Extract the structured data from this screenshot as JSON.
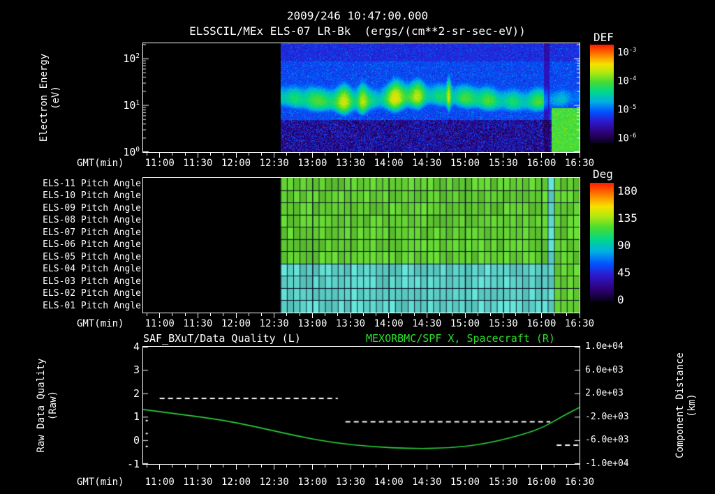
{
  "colors": {
    "background": "#000000",
    "text": "#ffffff",
    "accent_green": "#2ae32a",
    "curve_green": "#2bd23b"
  },
  "header": {
    "timestamp": "2009/246 10:47:00.000",
    "title": "ELSSCIL/MEx ELS-07 LR-Bk  (ergs/(cm**2-sr-sec-eV))",
    "colorbar_label": "DEF"
  },
  "time_axis": {
    "label": "GMT(min)",
    "start": "10:47",
    "end": "16:30",
    "ticks": [
      "11:00",
      "11:30",
      "12:00",
      "12:30",
      "13:00",
      "13:30",
      "14:00",
      "14:30",
      "15:00",
      "15:30",
      "16:00",
      "16:30"
    ]
  },
  "spectrogram": {
    "ylabel_line1": "Electron Energy",
    "ylabel_line2": "(eV)",
    "y_ticks": [
      {
        "base": "10",
        "exp": "2"
      },
      {
        "base": "10",
        "exp": "1"
      },
      {
        "base": "10",
        "exp": "0"
      }
    ],
    "colorbar_ticks": [
      {
        "base": "10",
        "exp": "-3"
      },
      {
        "base": "10",
        "exp": "-4"
      },
      {
        "base": "10",
        "exp": "-5"
      },
      {
        "base": "10",
        "exp": "-6"
      }
    ],
    "data_start": "12:35"
  },
  "pitch": {
    "rows": [
      "ELS-11 Pitch Angle",
      "ELS-10 Pitch Angle",
      "ELS-09 Pitch Angle",
      "ELS-08 Pitch Angle",
      "ELS-07 Pitch Angle",
      "ELS-06 Pitch Angle",
      "ELS-05 Pitch Angle",
      "ELS-04 Pitch Angle",
      "ELS-03 Pitch Angle",
      "ELS-02 Pitch Angle",
      "ELS-01 Pitch Angle"
    ],
    "colorbar_label": "Deg",
    "colorbar_ticks": [
      "180",
      "135",
      "90",
      "45",
      "0"
    ],
    "data_start": "12:35"
  },
  "bottom": {
    "left_title": "SAF_BXuT/Data Quality (L)",
    "right_title": "MEXORBMC/SPF X, Spacecraft (R)",
    "left_ylabel_line1": "Raw Data Quality",
    "left_ylabel_line2": "(Raw)",
    "right_ylabel_line1": "Component Distance",
    "right_ylabel_line2": "(km)",
    "left_ticks": [
      "4",
      "3",
      "2",
      "1",
      "0",
      "-1"
    ],
    "right_ticks": [
      "1.0e+04",
      "6.0e+03",
      "2.0e+03",
      "-2.0e+03",
      "-6.0e+03",
      "-1.0e+04"
    ]
  },
  "chart_data": [
    {
      "type": "heatmap",
      "name": "electron-energy-spectrogram",
      "title": "ELSSCIL/MEx ELS-07 LR-Bk (ergs/(cm**2-sr-sec-eV))",
      "date": "2009/246",
      "start_time": "10:47:00.000",
      "xlabel": "GMT(min)",
      "x_range": [
        "10:47",
        "16:30"
      ],
      "x_ticks": [
        "11:00",
        "11:30",
        "12:00",
        "12:30",
        "13:00",
        "13:30",
        "14:00",
        "14:30",
        "15:00",
        "15:30",
        "16:00",
        "16:30"
      ],
      "ylabel": "Electron Energy (eV)",
      "y_scale": "log",
      "y_range": [
        1,
        214
      ],
      "colorbar": {
        "label": "DEF",
        "units": "ergs/(cm**2-sr-sec-eV)",
        "scale": "log",
        "min": 1e-06,
        "max": 0.001
      },
      "coverage": {
        "start": "12:35",
        "end": "16:30"
      },
      "features": {
        "background_level": "~1e-5 blue at all energies during coverage",
        "band_center_eV": 14,
        "band_range_eV": [
          6,
          45
        ],
        "band_level": "~1e-4 green-cyan band",
        "enhancement_times": [
          "12:58",
          "13:25",
          "13:39",
          "14:06",
          "14:23",
          "14:47"
        ],
        "enhancement_amps": [
          0.08,
          0.14,
          0.2,
          0.18,
          0.12,
          0.26
        ],
        "enhancement_widths_min": [
          5,
          6,
          4,
          7,
          5,
          1.8
        ],
        "low_energy_blob_from": "16:08",
        "low_energy_blob_range_eV": [
          1,
          9
        ],
        "dark_speckle_below_eV": 5
      }
    },
    {
      "type": "heatmap",
      "name": "pitch-angle-panels",
      "rows": [
        "ELS-11 Pitch Angle",
        "ELS-10 Pitch Angle",
        "ELS-09 Pitch Angle",
        "ELS-08 Pitch Angle",
        "ELS-07 Pitch Angle",
        "ELS-06 Pitch Angle",
        "ELS-05 Pitch Angle",
        "ELS-04 Pitch Angle",
        "ELS-03 Pitch Angle",
        "ELS-02 Pitch Angle",
        "ELS-01 Pitch Angle"
      ],
      "colorbar": {
        "label": "Deg",
        "min": 0,
        "max": 180,
        "ticks": [
          180,
          135,
          90,
          45,
          0
        ]
      },
      "coverage": {
        "start": "12:35",
        "end": "16:30"
      },
      "cell_minutes": 5,
      "segments": [
        {
          "from": "12:35",
          "to": "16:01",
          "rows_ELS11_to_ELS05_deg": 110,
          "rows_ELS04_to_ELS01_deg": 72
        },
        {
          "from": "16:01",
          "to": "16:09",
          "all_rows_deg": 72
        },
        {
          "from": "16:09",
          "to": "16:30",
          "all_rows_deg": 110
        }
      ]
    },
    {
      "type": "line",
      "name": "quality-and-spacecraft-x",
      "xlabel": "GMT(min)",
      "left_axis": {
        "label": "Raw Data Quality (Raw)",
        "min": -1,
        "max": 4
      },
      "right_axis": {
        "label": "Component Distance (km)",
        "min": -10000,
        "max": 10000
      },
      "series": [
        {
          "name": "SAF_BXuT/Data Quality (L)",
          "axis": "left",
          "style": "dashed",
          "color": "#ffffff",
          "segments": [
            {
              "from": "11:00",
              "to": "13:20",
              "value": 1.8
            },
            {
              "from": "13:26",
              "to": "16:07",
              "value": 0.8
            },
            {
              "from": "16:12",
              "to": "16:30",
              "value": -0.2
            }
          ],
          "isolated_points": [
            {
              "t": "10:49",
              "value": 0.85
            },
            {
              "t": "10:49",
              "value": 0.3
            },
            {
              "t": "10:49",
              "value": -0.25
            }
          ]
        },
        {
          "name": "MEXORBMC/SPF X, Spacecraft (R)",
          "axis": "right",
          "style": "solid",
          "color": "#2bd23b",
          "t": [
            "10:47",
            "11:17",
            "11:47",
            "12:17",
            "12:47",
            "13:17",
            "13:47",
            "14:17",
            "14:47",
            "15:17",
            "15:47",
            "16:02",
            "16:17",
            "16:30"
          ],
          "km": [
            -700,
            -1550,
            -2400,
            -3700,
            -5200,
            -6400,
            -7050,
            -7380,
            -7300,
            -6550,
            -4900,
            -3700,
            -1800,
            -350
          ]
        }
      ]
    }
  ]
}
